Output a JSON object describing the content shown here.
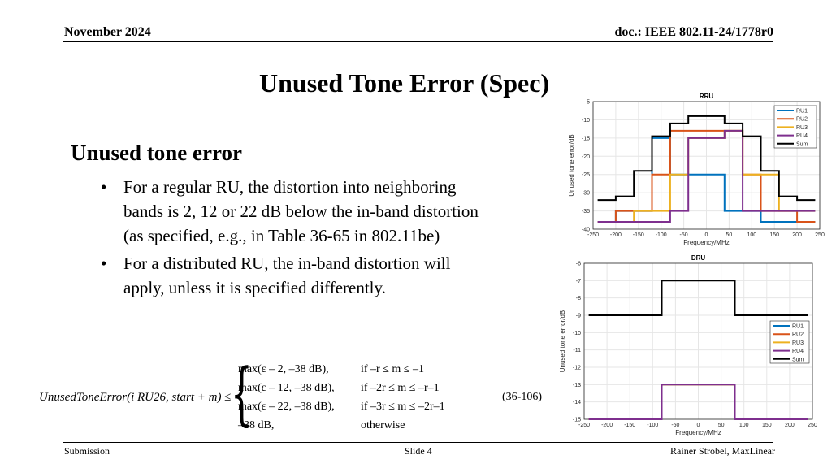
{
  "header": {
    "date": "November 2024",
    "doc": "doc.: IEEE 802.11-24/1778r0"
  },
  "title": "Unused Tone Error (Spec)",
  "body": {
    "heading": "Unused tone error",
    "bullets": [
      "For a regular RU, the distortion into neighboring bands is 2, 12 or 22 dB below the in-band distortion (as specified, e.g., in Table 36-65 in 802.11be)",
      "For a distributed RU, the in-band distortion will apply, unless it is specified differently."
    ]
  },
  "equation": {
    "lhs": "UnusedToneError(i RU26, start + m) ≤",
    "rows": [
      {
        "expr": "max(ε – 2, –38 dB),",
        "cond": "if  –r ≤ m ≤ –1"
      },
      {
        "expr": "max(ε – 12, –38 dB),",
        "cond": "if  –2r ≤ m ≤ –r–1"
      },
      {
        "expr": "max(ε – 22, –38 dB),",
        "cond": "if  –3r ≤ m ≤ –2r–1"
      },
      {
        "expr": "–38 dB,",
        "cond": "otherwise"
      }
    ],
    "number": "(36-106)"
  },
  "footer": {
    "left": "Submission",
    "center": "Slide 4",
    "right": "Rainer Strobel, MaxLinear"
  },
  "colors": {
    "RU1": "#0072BD",
    "RU2": "#D95319",
    "RU3": "#EDB120",
    "RU4": "#7E2F8E",
    "Sum": "#000000"
  },
  "chart_data": [
    {
      "type": "line",
      "title": "RRU",
      "xlabel": "Frequency/MHz",
      "ylabel": "Unused tone error/dB",
      "xlim": [
        -250,
        250
      ],
      "ylim": [
        -40,
        -5
      ],
      "xticks": [
        -250,
        -200,
        -150,
        -100,
        -50,
        0,
        50,
        100,
        150,
        200,
        250
      ],
      "yticks": [
        -40,
        -35,
        -30,
        -25,
        -20,
        -15,
        -10,
        -5
      ],
      "grid": true,
      "legend": "top-right",
      "series": [
        {
          "name": "RU1",
          "x": [
            -240,
            -200,
            -200,
            -160,
            -160,
            -120,
            -120,
            -80,
            -80,
            -40,
            -40,
            40,
            40,
            80,
            80,
            120,
            120,
            160,
            160,
            200,
            200,
            240
          ],
          "y": [
            -38,
            -38,
            -35,
            -35,
            -35,
            -35,
            -15,
            -15,
            -25,
            -25,
            -25,
            -25,
            -35,
            -35,
            -35,
            -35,
            -38,
            -38,
            -38,
            -38,
            -38,
            -38
          ]
        },
        {
          "name": "RU2",
          "x": [
            -240,
            -200,
            -200,
            -120,
            -120,
            -80,
            -80,
            -40,
            -40,
            40,
            40,
            80,
            80,
            120,
            120,
            200,
            200,
            240
          ],
          "y": [
            -38,
            -38,
            -35,
            -35,
            -25,
            -25,
            -13,
            -13,
            -13,
            -13,
            -13,
            -13,
            -25,
            -25,
            -35,
            -35,
            -38,
            -38
          ]
        },
        {
          "name": "RU3",
          "x": [
            -240,
            -160,
            -160,
            -80,
            -80,
            -40,
            -40,
            40,
            40,
            80,
            80,
            160,
            160,
            240
          ],
          "y": [
            -38,
            -38,
            -35,
            -35,
            -25,
            -25,
            -15,
            -15,
            -13,
            -13,
            -25,
            -25,
            -35,
            -35
          ]
        },
        {
          "name": "RU4",
          "x": [
            -240,
            -80,
            -80,
            -40,
            -40,
            40,
            40,
            80,
            80,
            240
          ],
          "y": [
            -38,
            -38,
            -35,
            -35,
            -15,
            -15,
            -13,
            -13,
            -35,
            -35
          ]
        },
        {
          "name": "Sum",
          "x": [
            -240,
            -200,
            -200,
            -160,
            -160,
            -120,
            -120,
            -80,
            -80,
            -40,
            -40,
            40,
            40,
            80,
            80,
            120,
            120,
            160,
            160,
            200,
            200,
            240
          ],
          "y": [
            -32,
            -32,
            -31,
            -31,
            -24,
            -24,
            -14.5,
            -14.5,
            -11,
            -11,
            -9,
            -9,
            -11,
            -11,
            -14.5,
            -14.5,
            -24,
            -24,
            -31,
            -31,
            -32,
            -32
          ]
        }
      ]
    },
    {
      "type": "line",
      "title": "DRU",
      "xlabel": "Frequency/MHz",
      "ylabel": "Unused tone error/dB",
      "xlim": [
        -250,
        250
      ],
      "ylim": [
        -15,
        -6
      ],
      "xticks": [
        -250,
        -200,
        -150,
        -100,
        -50,
        0,
        50,
        100,
        150,
        200,
        250
      ],
      "yticks": [
        -15,
        -14,
        -13,
        -12,
        -11,
        -10,
        -9,
        -8,
        -7,
        -6
      ],
      "grid": true,
      "legend": "right",
      "series": [
        {
          "name": "RU1",
          "x": [
            -240,
            -80,
            -80,
            80,
            80,
            240
          ],
          "y": [
            -15,
            -15,
            -13,
            -13,
            -15,
            -15
          ]
        },
        {
          "name": "RU2",
          "x": [
            -240,
            -80,
            -80,
            80,
            80,
            240
          ],
          "y": [
            -15,
            -15,
            -13,
            -13,
            -15,
            -15
          ]
        },
        {
          "name": "RU3",
          "x": [
            -240,
            -80,
            -80,
            80,
            80,
            240
          ],
          "y": [
            -15,
            -15,
            -13,
            -13,
            -15,
            -15
          ]
        },
        {
          "name": "RU4",
          "x": [
            -240,
            -80,
            -80,
            80,
            80,
            240
          ],
          "y": [
            -15,
            -15,
            -13,
            -13,
            -15,
            -15
          ]
        },
        {
          "name": "Sum",
          "x": [
            -240,
            -80,
            -80,
            80,
            80,
            240
          ],
          "y": [
            -9,
            -9,
            -7,
            -7,
            -9,
            -9
          ]
        }
      ]
    }
  ]
}
